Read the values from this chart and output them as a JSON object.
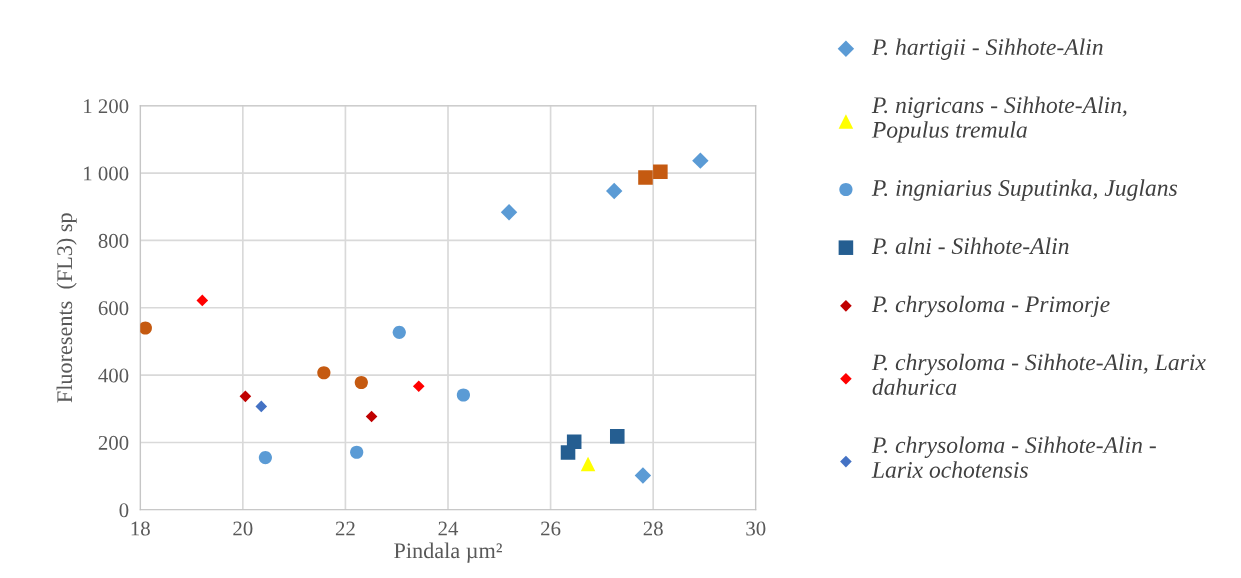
{
  "chart_data": {
    "type": "scatter",
    "xlabel": "Pindala µm²",
    "ylabel": "Fluoresents  (FL3) sp",
    "xlim": [
      18,
      30
    ],
    "xticks": [
      18,
      20,
      22,
      24,
      26,
      28,
      30
    ],
    "ylim": [
      0,
      1200
    ],
    "yticks": [
      0,
      200,
      400,
      600,
      800,
      {
        "value": 1000,
        "label": "1 000"
      },
      {
        "value": 1200,
        "label": "1 200"
      }
    ],
    "grid": true,
    "legend": "right",
    "series": [
      {
        "name": "P. hartigii - Sihhote-Alin",
        "color": "#5b9bd5",
        "marker": "diamond",
        "x": [
          25.19,
          27.24,
          28.92,
          27.8
        ],
        "values": [
          884,
          947,
          1037,
          102
        ]
      },
      {
        "name": "P. nigricans - Sihhote-Alin,\nPopulus tremula",
        "color": "#ffff00",
        "marker": "triangle",
        "x": [
          26.73
        ],
        "values": [
          136
        ]
      },
      {
        "name": "P. ingniarius Suputinka, Juglans",
        "color": "#5b9bd5",
        "marker": "circle",
        "x": [
          20.44,
          22.22,
          23.05,
          24.3
        ],
        "values": [
          155,
          171,
          527,
          341
        ]
      },
      {
        "name": "P. alni - Sihhote-Alin",
        "color": "#255e91",
        "marker": "square",
        "x": [
          26.34,
          26.46,
          27.3
        ],
        "values": [
          170,
          202,
          218
        ]
      },
      {
        "name": "P. chrysoloma - Primorje",
        "color": "#c00000",
        "marker": "diamond",
        "x": [
          20.05,
          22.51
        ],
        "values": [
          337,
          277
        ]
      },
      {
        "name": "P. chrysoloma - Sihhote-Alin, Larix\ndahurica",
        "color": "#ff0000",
        "marker": "diamond",
        "x": [
          19.21,
          23.43
        ],
        "values": [
          622,
          367
        ]
      },
      {
        "name": "P. chrysoloma - Sihhote-Alin -\nLarix ochotensis",
        "color": "#4472c4",
        "marker": "diamond",
        "x": [
          20.36
        ],
        "values": [
          307
        ]
      },
      {
        "color": "#c55a11",
        "marker": "circle",
        "x": [
          18.1,
          21.58,
          22.31
        ],
        "values": [
          540,
          407,
          378
        ]
      },
      {
        "color": "#c55a11",
        "marker": "square",
        "x": [
          27.85,
          28.14
        ],
        "values": [
          987,
          1004
        ]
      }
    ]
  }
}
